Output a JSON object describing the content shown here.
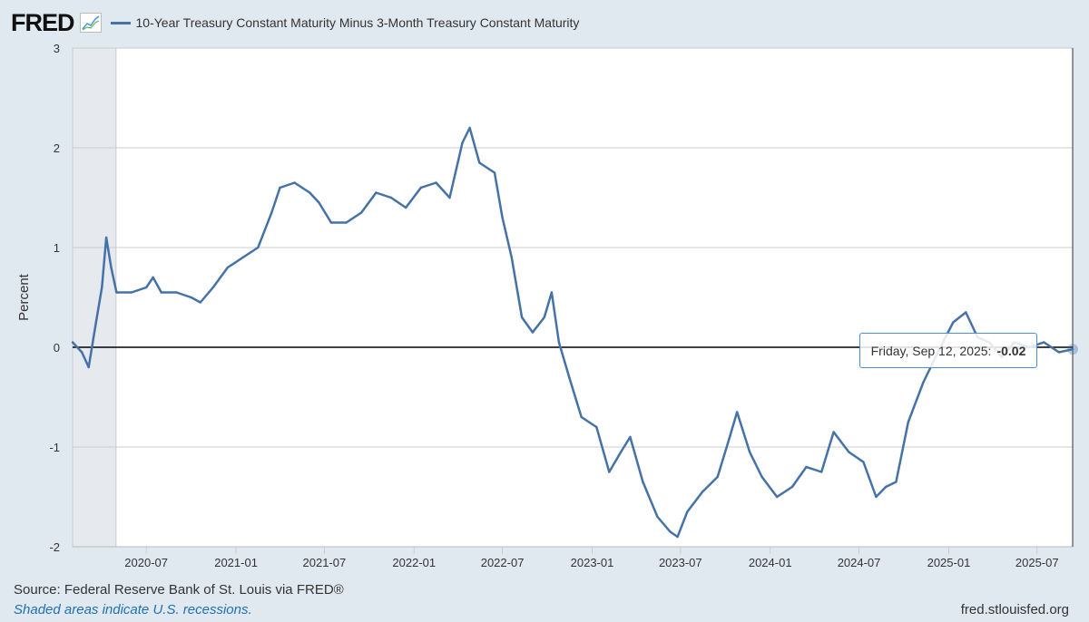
{
  "header": {
    "logo": "FRED",
    "logo_icon": "line-chart-icon",
    "series_title": "10-Year Treasury Constant Maturity Minus 3-Month Treasury Constant Maturity"
  },
  "footer": {
    "source": "Source: Federal Reserve Bank of St. Louis via FRED®",
    "recession_note": "Shaded areas indicate U.S. recessions.",
    "site": "fred.stlouisfed.org"
  },
  "tooltip": {
    "date": "Friday, Sep 12, 2025:",
    "value": "-0.02"
  },
  "colors": {
    "series": "#4572a7",
    "background": "#e1e9f0",
    "recession": "#e6e9ed",
    "zero_line": "#000000",
    "grid": "#cccccc"
  },
  "chart_data": {
    "type": "line",
    "title": "10-Year Treasury Constant Maturity Minus 3-Month Treasury Constant Maturity",
    "xlabel": "",
    "ylabel": "Percent",
    "ylim": [
      -2,
      3
    ],
    "yticks": [
      "3",
      "2",
      "1",
      "0",
      "-1",
      "-2"
    ],
    "xticks": [
      "2020-07",
      "2021-01",
      "2021-07",
      "2022-01",
      "2022-07",
      "2023-01",
      "2023-07",
      "2024-01",
      "2024-07",
      "2025-01",
      "2025-07"
    ],
    "xlim": [
      "2020-02-01",
      "2025-09-12"
    ],
    "grid": true,
    "recessions": [
      [
        "2020-02-01",
        "2020-04-30"
      ]
    ],
    "series": [
      {
        "x": [
          "2020-02-01",
          "2020-02-20",
          "2020-03-05",
          "2020-03-20",
          "2020-04-01",
          "2020-04-10",
          "2020-04-20",
          "2020-05-01",
          "2020-06-01",
          "2020-07-01",
          "2020-07-15",
          "2020-08-01",
          "2020-09-01",
          "2020-10-01",
          "2020-10-20",
          "2020-11-15",
          "2020-12-15",
          "2021-01-15",
          "2021-02-15",
          "2021-03-15",
          "2021-04-01",
          "2021-05-01",
          "2021-06-01",
          "2021-06-20",
          "2021-07-15",
          "2021-08-15",
          "2021-09-15",
          "2021-10-15",
          "2021-11-15",
          "2021-12-15",
          "2022-01-15",
          "2022-02-15",
          "2022-03-15",
          "2022-04-10",
          "2022-04-25",
          "2022-05-15",
          "2022-06-15",
          "2022-07-01",
          "2022-07-20",
          "2022-08-10",
          "2022-09-01",
          "2022-09-25",
          "2022-10-10",
          "2022-10-25",
          "2022-11-15",
          "2022-12-10",
          "2023-01-10",
          "2023-02-05",
          "2023-03-01",
          "2023-03-20",
          "2023-04-15",
          "2023-05-15",
          "2023-06-10",
          "2023-06-25",
          "2023-07-15",
          "2023-08-15",
          "2023-09-15",
          "2023-10-10",
          "2023-10-25",
          "2023-11-20",
          "2023-12-15",
          "2024-01-15",
          "2024-02-15",
          "2024-03-15",
          "2024-04-15",
          "2024-05-10",
          "2024-06-10",
          "2024-07-10",
          "2024-08-05",
          "2024-08-25",
          "2024-09-15",
          "2024-10-10",
          "2024-11-10",
          "2024-12-10",
          "2025-01-10",
          "2025-02-05",
          "2025-03-01",
          "2025-03-25",
          "2025-04-20",
          "2025-05-15",
          "2025-06-15",
          "2025-07-15",
          "2025-08-15",
          "2025-09-12"
        ],
        "values": [
          0.05,
          -0.05,
          -0.2,
          0.25,
          0.6,
          1.1,
          0.8,
          0.55,
          0.55,
          0.6,
          0.7,
          0.55,
          0.55,
          0.5,
          0.45,
          0.6,
          0.8,
          0.9,
          1.0,
          1.35,
          1.6,
          1.65,
          1.55,
          1.45,
          1.25,
          1.25,
          1.35,
          1.55,
          1.5,
          1.4,
          1.6,
          1.65,
          1.5,
          2.05,
          2.2,
          1.85,
          1.75,
          1.3,
          0.9,
          0.3,
          0.15,
          0.3,
          0.55,
          0.05,
          -0.3,
          -0.7,
          -0.8,
          -1.25,
          -1.05,
          -0.9,
          -1.35,
          -1.7,
          -1.85,
          -1.9,
          -1.65,
          -1.45,
          -1.3,
          -0.9,
          -0.65,
          -1.05,
          -1.3,
          -1.5,
          -1.4,
          -1.2,
          -1.25,
          -0.85,
          -1.05,
          -1.15,
          -1.5,
          -1.4,
          -1.35,
          -0.75,
          -0.35,
          -0.05,
          0.25,
          0.35,
          0.1,
          0.05,
          -0.1,
          0.05,
          0.0,
          0.05,
          -0.05,
          -0.02
        ]
      }
    ]
  }
}
